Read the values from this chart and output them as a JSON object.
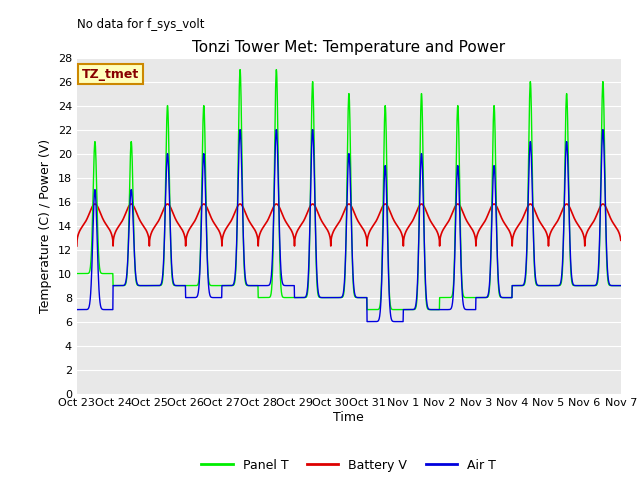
{
  "title": "Tonzi Tower Met: Temperature and Power",
  "no_data_text": "No data for f_sys_volt",
  "ylabel": "Temperature (C) / Power (V)",
  "xlabel": "Time",
  "annotation": "TZ_tmet",
  "ylim": [
    0,
    28
  ],
  "yticks": [
    0,
    2,
    4,
    6,
    8,
    10,
    12,
    14,
    16,
    18,
    20,
    22,
    24,
    26,
    28
  ],
  "xtick_labels": [
    "Oct 23",
    "Oct 24",
    "Oct 25",
    "Oct 26",
    "Oct 27",
    "Oct 28",
    "Oct 29",
    "Oct 30",
    "Oct 31",
    "Nov 1",
    "Nov 2",
    "Nov 3",
    "Nov 4",
    "Nov 5",
    "Nov 6",
    "Nov 7"
  ],
  "panel_color": "#00ee00",
  "battery_color": "#dd0000",
  "air_color": "#0000dd",
  "plot_bg_color": "#e8e8e8",
  "legend_labels": [
    "Panel T",
    "Battery V",
    "Air T"
  ],
  "title_fontsize": 11,
  "axis_fontsize": 9,
  "tick_fontsize": 8,
  "n_days": 15,
  "n_points_per_day": 144,
  "panel_peaks": [
    21,
    21,
    24,
    24,
    27,
    27,
    26,
    25,
    24,
    25,
    24,
    24,
    26,
    25,
    26
  ],
  "panel_mins": [
    10,
    9,
    9,
    9,
    9,
    8,
    8,
    8,
    7,
    7,
    8,
    8,
    9,
    9,
    9
  ],
  "air_peaks": [
    17,
    17,
    20,
    20,
    22,
    22,
    22,
    20,
    19,
    20,
    19,
    19,
    21,
    21,
    22
  ],
  "air_mins": [
    7,
    9,
    9,
    8,
    9,
    9,
    8,
    8,
    6,
    7,
    7,
    8,
    9,
    9,
    9
  ],
  "battery_base": 12.3,
  "battery_peak": 15.8,
  "battery_shoulder": 14.5
}
